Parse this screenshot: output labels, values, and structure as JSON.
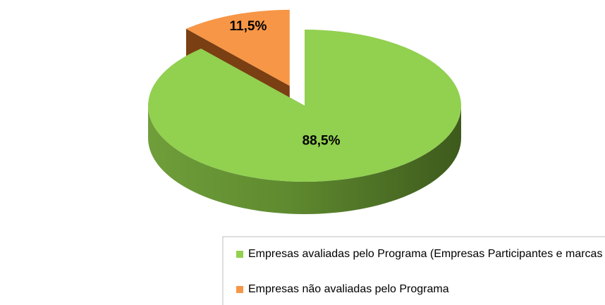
{
  "chart_data": {
    "type": "pie",
    "categories": [
      "Empresas avaliadas pelo Programa (Empresas Participantes e marcas acompanhadas)",
      "Empresas não avaliadas pelo Programa"
    ],
    "values": [
      88.5,
      11.5
    ],
    "value_labels": [
      "88,5%",
      "11,5%"
    ],
    "colors": [
      "#92d050",
      "#f79646"
    ]
  }
}
